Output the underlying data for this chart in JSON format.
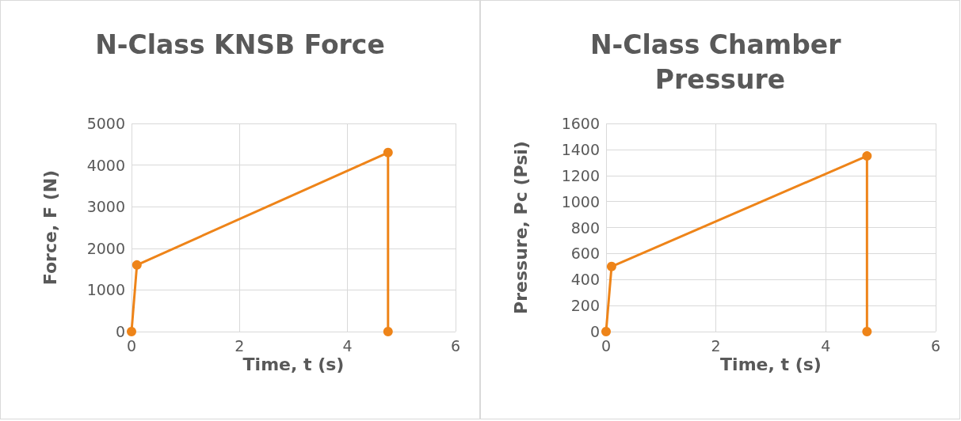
{
  "chart_data": [
    {
      "type": "line",
      "title": "N-Class KNSB Force",
      "xlabel": "Time, t (s)",
      "ylabel": "Force, F (N)",
      "x": [
        0,
        0.1,
        4.75,
        4.75
      ],
      "values": [
        0,
        1600,
        4300,
        0
      ],
      "color": "#ee8419",
      "xlim": [
        0,
        6
      ],
      "xticks": [
        0,
        2,
        4,
        6
      ],
      "ylim": [
        0,
        5000
      ],
      "yticks": [
        0,
        1000,
        2000,
        3000,
        4000,
        5000
      ],
      "grid": true,
      "marker": "circle",
      "line_style": "solid"
    },
    {
      "type": "line",
      "title": "N-Class Chamber Pressure",
      "xlabel": "Time, t (s)",
      "ylabel": "Pressure, Pc (Psi)",
      "x": [
        0,
        0.1,
        4.75,
        4.75
      ],
      "values": [
        0,
        500,
        1350,
        0
      ],
      "color": "#ee8419",
      "xlim": [
        0,
        6
      ],
      "xticks": [
        0,
        2,
        4,
        6
      ],
      "ylim": [
        0,
        1600
      ],
      "yticks": [
        0,
        200,
        400,
        600,
        800,
        1000,
        1200,
        1400,
        1600
      ],
      "grid": true,
      "marker": "circle",
      "line_style": "solid"
    }
  ]
}
